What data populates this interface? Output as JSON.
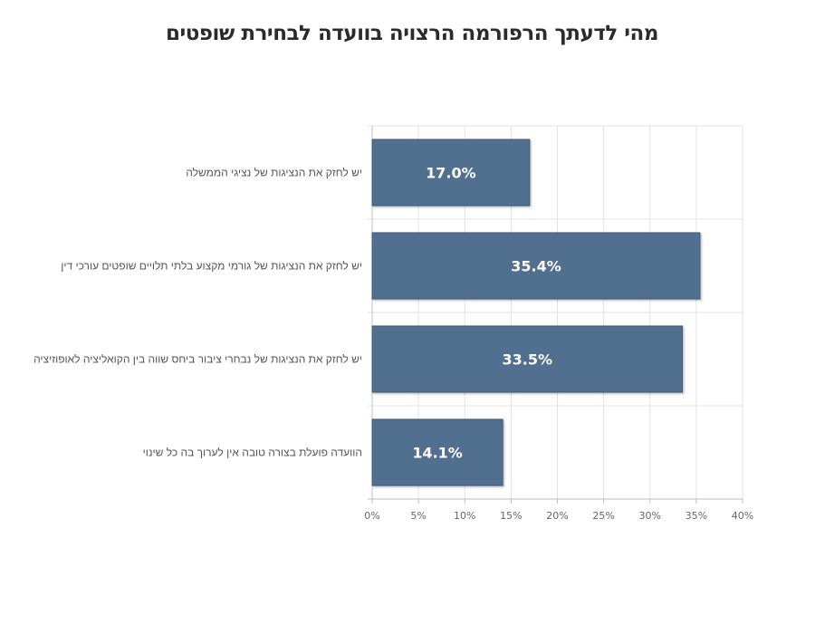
{
  "chart_data": {
    "type": "bar",
    "orientation": "horizontal",
    "title": "מהי לדעתך הרפורמה הרצויה בוועדה לבחירת שופטים",
    "categories": [
      "יש לחזק את הנציגות של נציגי הממשלה",
      "יש לחזק את הנציגות של גורמי מקצוע בלתי תלויים שופטים עורכי דין",
      "יש לחזק את הנציגות של נבחרי ציבור ביחס שווה בין הקואליציה לאופוזיציה",
      "הוועדה פועלת בצורה טובה אין לערוך בה כל שינוי"
    ],
    "values": [
      17.0,
      35.4,
      33.5,
      14.1
    ],
    "value_labels": [
      "17.0%",
      "35.4%",
      "33.5%",
      "14.1%"
    ],
    "xlim": [
      0,
      40
    ],
    "xticks": [
      0,
      5,
      10,
      15,
      20,
      25,
      30,
      35,
      40
    ],
    "xtick_labels": [
      "0%",
      "5%",
      "10%",
      "15%",
      "20%",
      "25%",
      "30%",
      "35%",
      "40%"
    ],
    "grid": true,
    "legend": "none",
    "bar_color": "#516f8f",
    "bar_edge_color": "#3f5a76",
    "grid_color": "#e3e3e3",
    "axis_color": "#bfbfbf"
  }
}
